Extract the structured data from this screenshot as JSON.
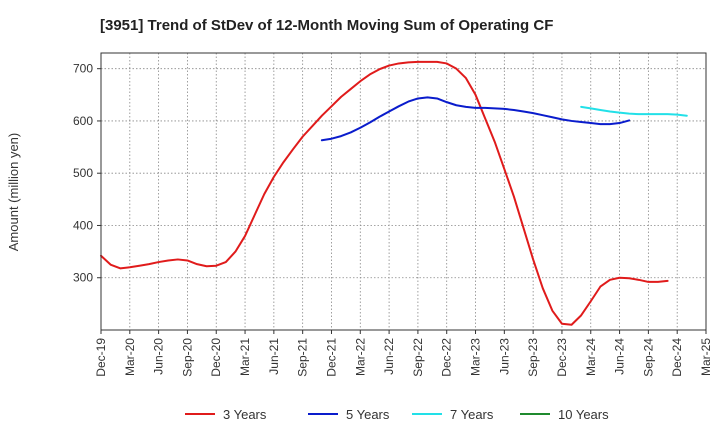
{
  "chart_data": {
    "type": "line",
    "title": "[3951]  Trend of StDev of 12-Month Moving Sum of Operating CF",
    "xlabel": "",
    "ylabel": "Amount (million yen)",
    "ylim": [
      200,
      730
    ],
    "yticks": [
      300,
      400,
      500,
      600,
      700
    ],
    "grid": true,
    "legend_position": "bottom",
    "x_tick_labels": [
      "Dec-19",
      "Mar-20",
      "Jun-20",
      "Sep-20",
      "Dec-20",
      "Mar-21",
      "Jun-21",
      "Sep-21",
      "Dec-21",
      "Mar-22",
      "Jun-22",
      "Sep-22",
      "Dec-22",
      "Mar-23",
      "Jun-23",
      "Sep-23",
      "Dec-23",
      "Mar-24",
      "Jun-24",
      "Sep-24",
      "Dec-24",
      "Mar-25"
    ],
    "x_label_every": 3,
    "series": [
      {
        "name": "3 Years",
        "color": "#e01b1b",
        "start_month_index": 0,
        "values": [
          342,
          325,
          318,
          320,
          323,
          326,
          330,
          333,
          335,
          333,
          326,
          322,
          323,
          330,
          350,
          380,
          420,
          460,
          493,
          521,
          546,
          570,
          590,
          610,
          628,
          646,
          661,
          676,
          689,
          699,
          706,
          710,
          712,
          713,
          713,
          713,
          710,
          700,
          682,
          650,
          605,
          560,
          508,
          455,
          395,
          335,
          280,
          237,
          212,
          210,
          228,
          255,
          283,
          296,
          300,
          299,
          296,
          292,
          292,
          294
        ]
      },
      {
        "name": "5 Years",
        "color": "#0a1ccc",
        "start_month_index": 23,
        "values": [
          563,
          566,
          571,
          578,
          587,
          597,
          608,
          618,
          628,
          637,
          643,
          645,
          643,
          636,
          630,
          627,
          625,
          625,
          624,
          623,
          621,
          618,
          615,
          611,
          607,
          603,
          600,
          598,
          596,
          594,
          594,
          596,
          601
        ]
      },
      {
        "name": "7 Years",
        "color": "#22e0e8",
        "start_month_index": 50,
        "values": [
          627,
          624,
          621,
          618,
          616,
          614,
          613,
          613,
          613,
          613,
          612,
          610
        ]
      },
      {
        "name": "10 Years",
        "color": "#1f8a2e",
        "start_month_index": 0,
        "values": []
      }
    ]
  }
}
